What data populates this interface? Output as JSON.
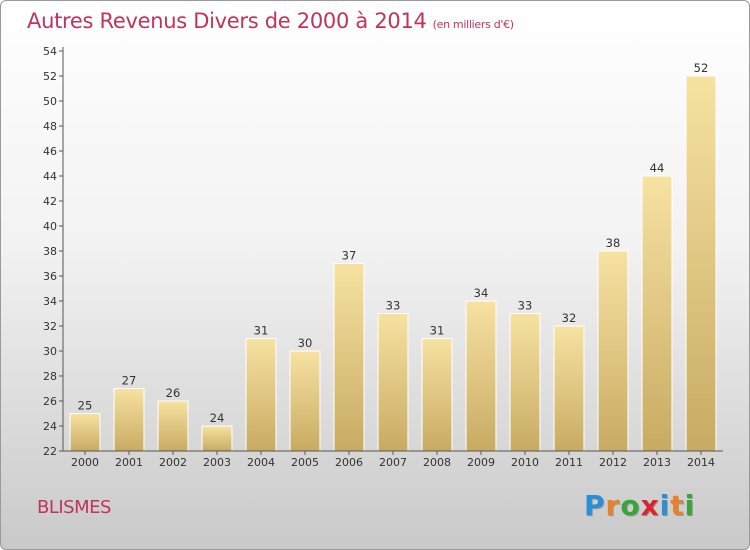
{
  "title": {
    "main": "Autres Revenus Divers de 2000 à 2014",
    "unit": "(en milliers d'€)"
  },
  "place_name": "BLISMES",
  "logo": {
    "text": "Proxiti",
    "letters": [
      "P",
      "r",
      "o",
      "x",
      "i",
      "t",
      "i"
    ],
    "letter_colors": [
      "#2a8fd6",
      "#e8822a",
      "#3aa33a",
      "#d8262b",
      "#2a8fd6",
      "#e8822a",
      "#3aa33a"
    ]
  },
  "chart_data": {
    "type": "bar",
    "categories": [
      "2000",
      "2001",
      "2002",
      "2003",
      "2004",
      "2005",
      "2006",
      "2007",
      "2008",
      "2009",
      "2010",
      "2011",
      "2012",
      "2013",
      "2014"
    ],
    "values": [
      25,
      27,
      26,
      24,
      31,
      30,
      37,
      33,
      31,
      34,
      33,
      32,
      38,
      44,
      52
    ],
    "ylim": [
      22,
      54
    ],
    "yticks": [
      22,
      24,
      26,
      28,
      30,
      32,
      34,
      36,
      38,
      40,
      42,
      44,
      46,
      48,
      50,
      52,
      54
    ],
    "grid": false,
    "bar_color_top": "#f7e2a2",
    "bar_color_bottom": "#c8ab62"
  }
}
